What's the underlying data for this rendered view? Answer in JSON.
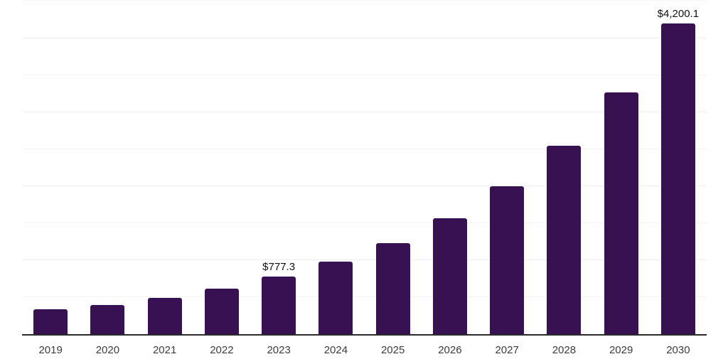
{
  "chart_data": {
    "type": "bar",
    "title": "",
    "xlabel": "",
    "ylabel": "",
    "categories": [
      "2019",
      "2020",
      "2021",
      "2022",
      "2023",
      "2024",
      "2025",
      "2026",
      "2027",
      "2028",
      "2029",
      "2030"
    ],
    "values": [
      335,
      390,
      490,
      615,
      777.3,
      985,
      1235,
      1570,
      2000,
      2545,
      3270,
      4200.1
    ],
    "value_labels": [
      "",
      "",
      "",
      "",
      "$777.3",
      "",
      "",
      "",
      "",
      "",
      "",
      "$4,200.1"
    ],
    "ylim": [
      0,
      4500
    ],
    "gridline_step": 500,
    "grid": true,
    "legend": false,
    "colors": {
      "bar": "#371151",
      "gridline": "#f2f2f2",
      "axis_line": "#2b2b2b",
      "tick_label": "#3c3c3c",
      "value_label": "#111111",
      "background": "#ffffff"
    }
  }
}
